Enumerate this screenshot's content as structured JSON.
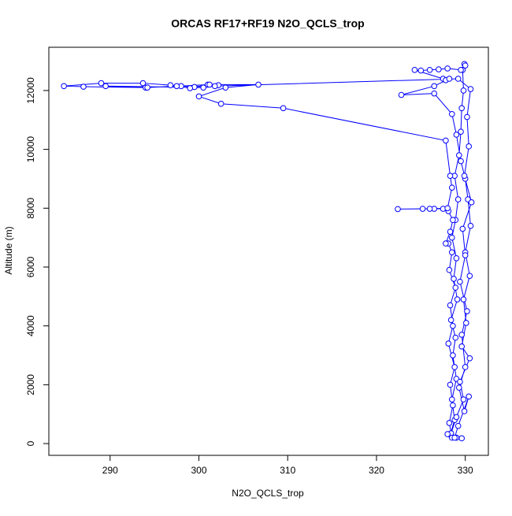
{
  "chart_data": {
    "type": "line",
    "markers": true,
    "color": "#0000ff",
    "title": "ORCAS RF17+RF19 N2O_QCLS_trop",
    "xlabel": "N2O_QCLS_trop",
    "ylabel": "Altitude (m)",
    "xlim": [
      283.1,
      332.6
    ],
    "xticks": [
      290,
      300,
      310,
      320,
      330
    ],
    "ylim": [
      -400,
      13470
    ],
    "yticks": [
      0,
      2000,
      4000,
      6000,
      8000,
      10000,
      12000
    ],
    "x": [
      328.3,
      328.8,
      328.5,
      329.0,
      328.6,
      328.9,
      328.4,
      329.1,
      328.7,
      329.0,
      328.5,
      328.9,
      329.2,
      328.8,
      329.3,
      329.5,
      329.6,
      329.8,
      329.7,
      329.9,
      330.0,
      329.5,
      328.0,
      327.0,
      326.0,
      325.0,
      324.3,
      327.5,
      327.8,
      328.2,
      326.5,
      322.8,
      326.5,
      328.5,
      329.0,
      329.5,
      330.0,
      330.3,
      330.6,
      330.0,
      330.5,
      329.8,
      330.1,
      329.6,
      330.5,
      329.4,
      329.8,
      329.0,
      328.4,
      328.0,
      329.0,
      329.6,
      328.5,
      328.2,
      328.6,
      328.3,
      328.8,
      328.1,
      328.6,
      328.3,
      328.9,
      328.2,
      328.5,
      328.1,
      327.8,
      328.3,
      328.6,
      328.1,
      327.5,
      326.5,
      325.2,
      322.4,
      326.0,
      328.0,
      328.5,
      328.3,
      327.8,
      309.5,
      302.5,
      300.0,
      303.0,
      306.7,
      301.0,
      298.0,
      294.0,
      287.0,
      284.8,
      289.0,
      293.7,
      296.8,
      299.5,
      301.2,
      302.2,
      299.0,
      297.5,
      294.2,
      289.5,
      300.5,
      301.8,
      329.2,
      330.6,
      330.2,
      330.4,
      329.9,
      330.7,
      329.7,
      330.0,
      329.4,
      330.2,
      329.6,
      330.0,
      329.3,
      329.9,
      330.4,
      329.2,
      328.8
    ],
    "y": [
      300,
      800,
      1500,
      2200,
      3000,
      3600,
      4200,
      4900,
      5600,
      6300,
      7000,
      7600,
      8300,
      9100,
      9800,
      10600,
      11400,
      12000,
      12700,
      12900,
      12850,
      12700,
      12750,
      12720,
      12700,
      12680,
      12700,
      12400,
      12350,
      12400,
      12150,
      11850,
      11900,
      11200,
      10500,
      9600,
      9000,
      8300,
      7400,
      6500,
      5700,
      4900,
      4100,
      3300,
      2900,
      2100,
      1500,
      900,
      350,
      320,
      200,
      180,
      200,
      700,
      1300,
      2000,
      2600,
      3400,
      4000,
      4700,
      5300,
      5900,
      6500,
      6800,
      6800,
      7200,
      7600,
      7900,
      7980,
      7980,
      7980,
      7970,
      7980,
      8000,
      8700,
      9100,
      10300,
      11400,
      11550,
      11800,
      12100,
      12200,
      12200,
      12150,
      12100,
      12130,
      12150,
      12250,
      12250,
      12180,
      12120,
      12200,
      12180,
      12080,
      12150,
      12100,
      12150,
      12100,
      12150,
      12400,
      12050,
      11100,
      10100,
      9100,
      8200,
      7300,
      6400,
      5500,
      4500,
      3700,
      2600,
      1900,
      1100,
      1600,
      600,
      200
    ]
  }
}
